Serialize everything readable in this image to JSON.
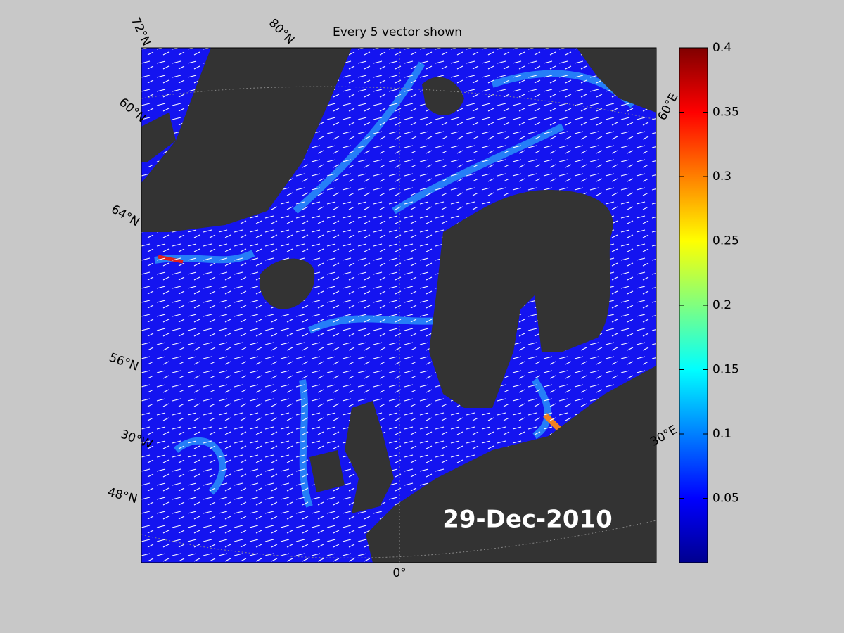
{
  "title": "Every 5 vector shown",
  "date": "29-Dec-2010",
  "graticule_labels": [
    "72°N",
    "80°N",
    "60°N",
    "64°N",
    "56°N",
    "30°W",
    "48°N",
    "0°",
    "30°E",
    "60°E"
  ],
  "colorbar": {
    "lim": [
      0,
      0.4
    ],
    "ticks": [
      0.05,
      0.1,
      0.15,
      0.2,
      0.25,
      0.3,
      0.35,
      0.4
    ]
  }
}
